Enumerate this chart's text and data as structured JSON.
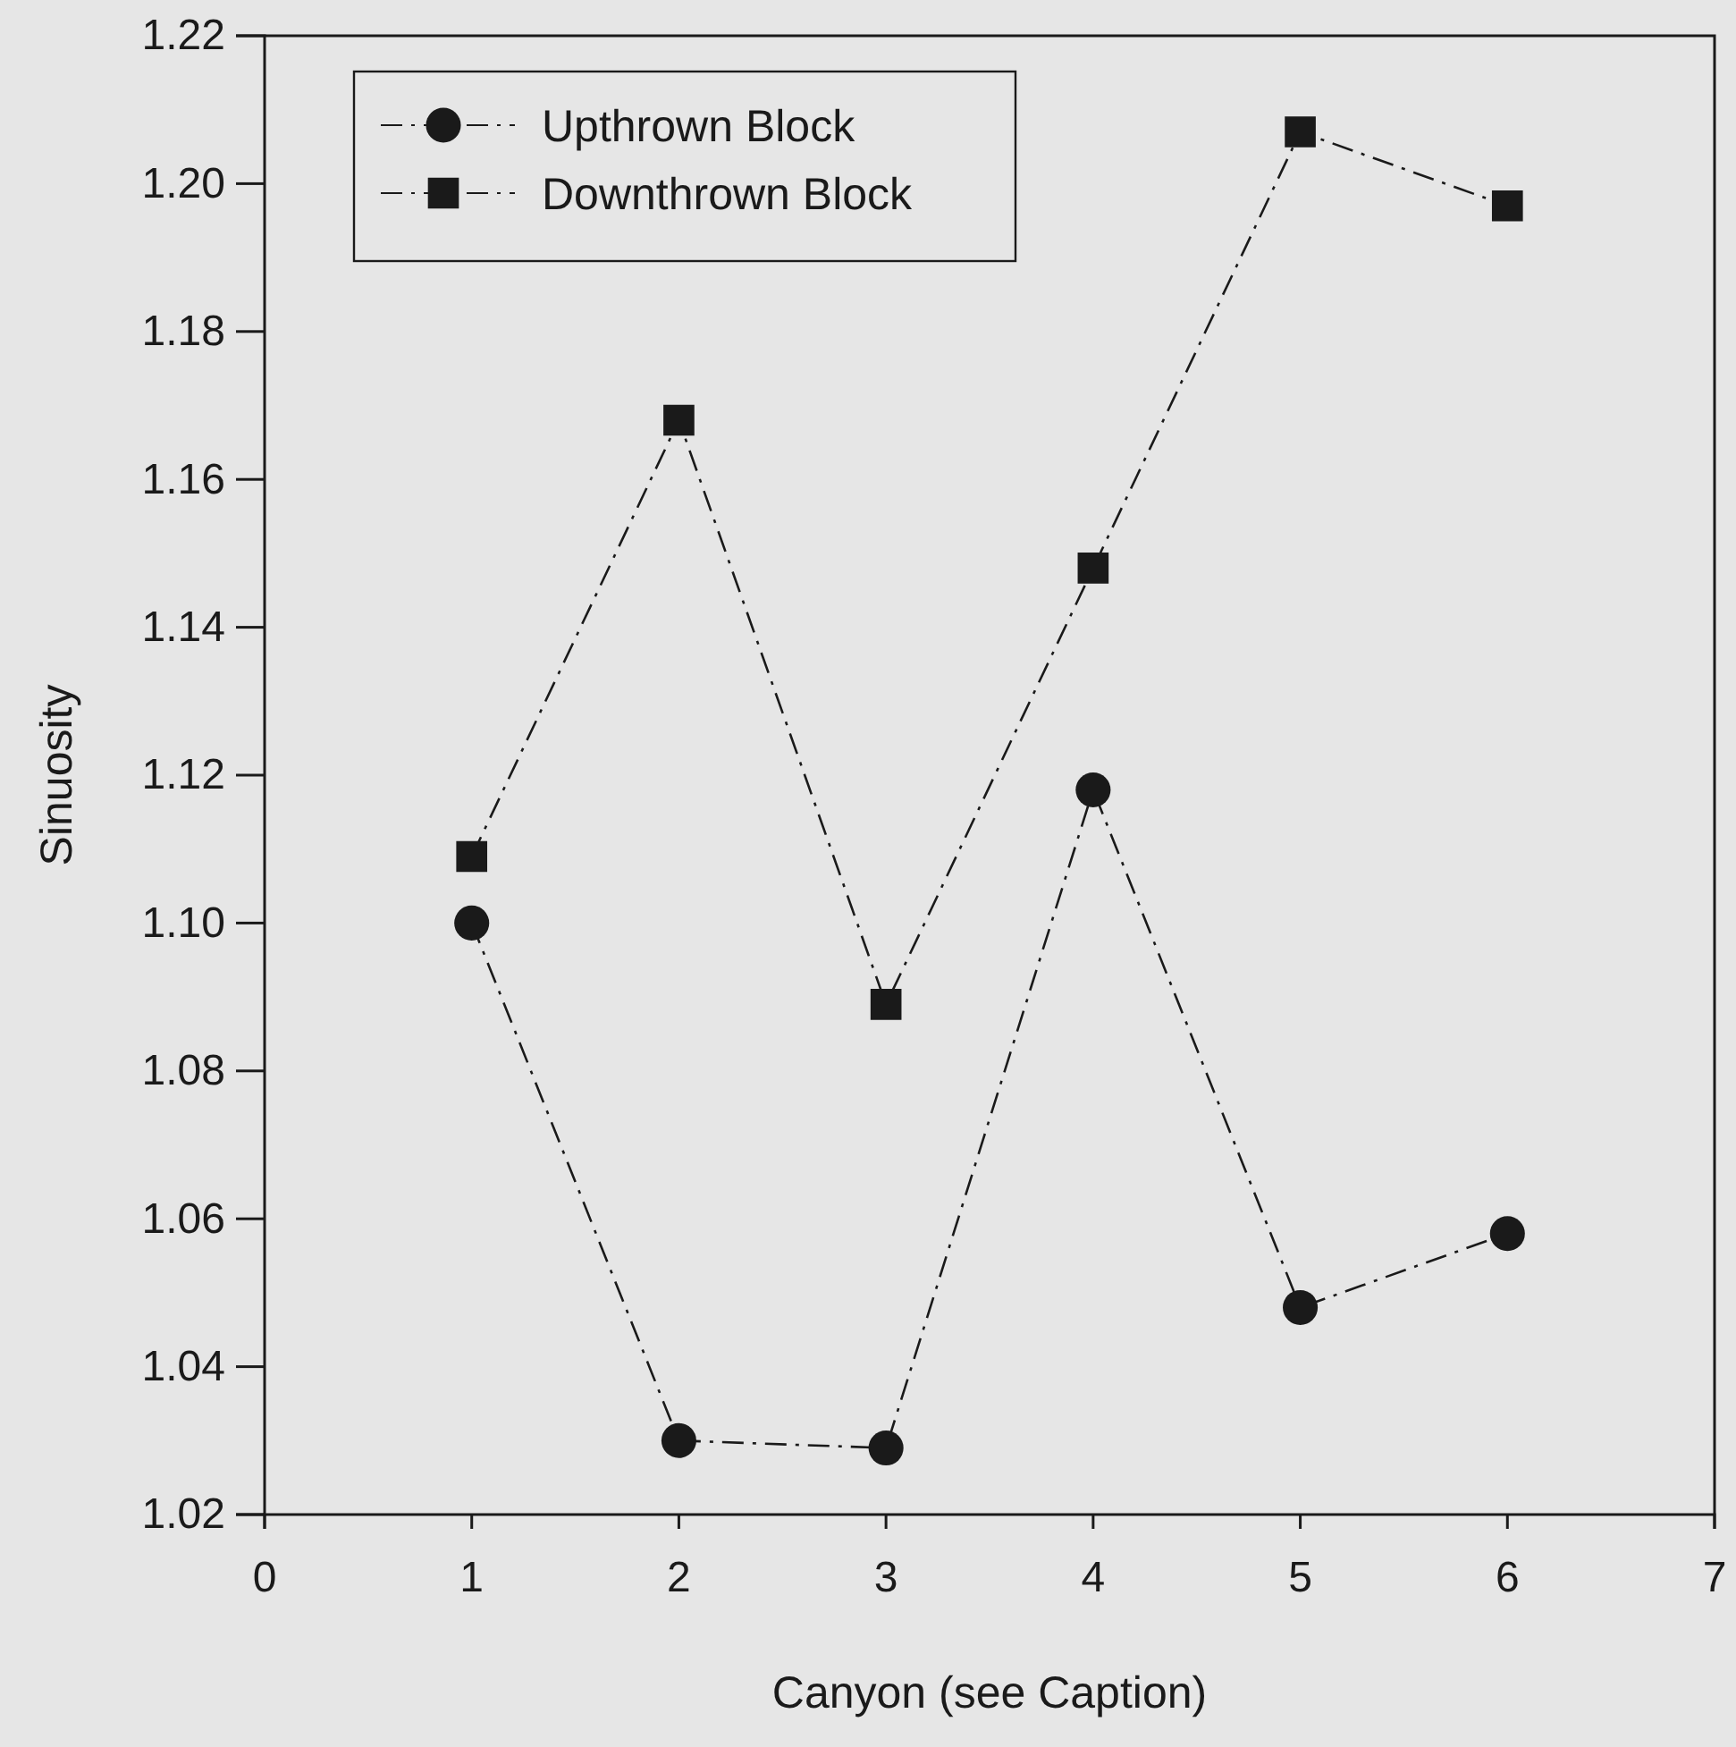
{
  "chart_data": {
    "type": "line",
    "xlabel": "Canyon (see Caption)",
    "ylabel": "Sinuosity",
    "x": [
      1,
      2,
      3,
      4,
      5,
      6
    ],
    "xlim": [
      0,
      7
    ],
    "xticks": [
      0,
      1,
      2,
      3,
      4,
      5,
      6,
      7
    ],
    "ylim": [
      1.02,
      1.22
    ],
    "yticks": [
      {
        "value": 1.02,
        "label": "1.02"
      },
      {
        "value": 1.04,
        "label": "1.04"
      },
      {
        "value": 1.06,
        "label": "1.06"
      },
      {
        "value": 1.08,
        "label": "1.08"
      },
      {
        "value": 1.1,
        "label": "1.10"
      },
      {
        "value": 1.12,
        "label": "1.12"
      },
      {
        "value": 1.14,
        "label": "1.14"
      },
      {
        "value": 1.16,
        "label": "1.16"
      },
      {
        "value": 1.18,
        "label": "1.18"
      },
      {
        "value": 1.2,
        "label": "1.20"
      },
      {
        "value": 1.22,
        "label": "1.22"
      }
    ],
    "series": [
      {
        "name": "Upthrown Block",
        "color": "#1a1a1a",
        "marker": "circle",
        "values": [
          1.1,
          1.03,
          1.029,
          1.118,
          1.048,
          1.058
        ]
      },
      {
        "name": "Downthrown Block",
        "color": "#1a1a1a",
        "marker": "square",
        "values": [
          1.109,
          1.168,
          1.089,
          1.148,
          1.207,
          1.197
        ]
      }
    ],
    "line_style": "dashed",
    "legend": "top left",
    "grid": false
  }
}
